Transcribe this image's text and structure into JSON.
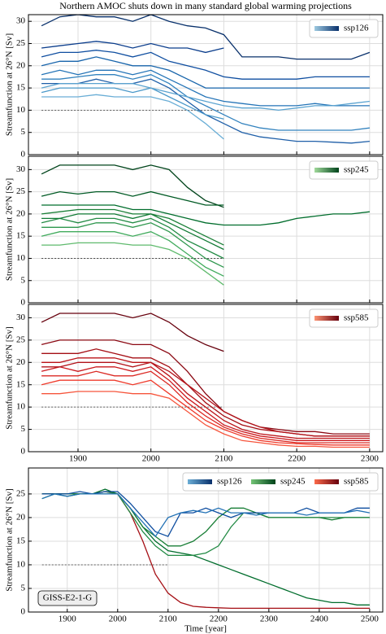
{
  "chart_data": [
    {
      "type": "line",
      "title": "Northern AMOC shuts down in many standard global warming projections",
      "ylabel": "Streamfunction at 26°N [Sv]",
      "x": [
        1850,
        1875,
        1900,
        1925,
        1950,
        1975,
        2000,
        2025,
        2050,
        2075,
        2100,
        2125,
        2150,
        2175,
        2200,
        2225,
        2250,
        2275,
        2300
      ],
      "xlim": [
        1832,
        2318
      ],
      "xticks": [
        1900,
        2000,
        2100,
        2200,
        2300
      ],
      "xticklabels": false,
      "ylim": [
        0,
        31.5
      ],
      "yticks": [
        0,
        5,
        10,
        15,
        20,
        25,
        30
      ],
      "grid": true,
      "hline": {
        "y": 10,
        "x": [
          1850,
          2100
        ]
      },
      "legend": [
        {
          "label": "ssp126",
          "colors": [
            "#9ecae1",
            "#08306b"
          ]
        }
      ],
      "legend_corner": "upper right",
      "series": [
        {
          "color": "#08306b",
          "values": [
            29,
            31,
            31.5,
            31,
            31,
            30,
            31.5,
            30,
            29,
            28.5,
            27,
            22,
            22,
            22,
            21.5,
            21.5,
            21.5,
            21.5,
            23
          ]
        },
        {
          "color": "#0b3d8c",
          "values": [
            24,
            24.5,
            25,
            25.5,
            25,
            24,
            25,
            24,
            24,
            23,
            24,
            null,
            null,
            null,
            null,
            null,
            null,
            null,
            null
          ]
        },
        {
          "color": "#0f4ea0",
          "values": [
            22,
            23,
            23,
            23.5,
            23,
            22,
            23,
            21,
            20,
            19,
            17.5,
            17,
            17,
            17,
            17,
            17.5,
            17.5,
            17.5,
            17.5
          ]
        },
        {
          "color": "#1764ab",
          "values": [
            20,
            21,
            21,
            22,
            21,
            20,
            20,
            19,
            17,
            15,
            15,
            15,
            15,
            15,
            15,
            15,
            15,
            15,
            15
          ]
        },
        {
          "color": "#2474b7",
          "values": [
            18,
            19,
            18,
            19,
            19,
            18,
            19,
            17,
            15,
            13,
            12,
            11.5,
            11,
            11,
            11,
            11.5,
            11,
            11,
            11
          ]
        },
        {
          "color": "#3282be",
          "values": [
            17,
            17,
            17.5,
            18,
            18,
            17,
            18,
            16,
            13,
            11,
            9,
            7,
            6,
            5.5,
            5.5,
            5.5,
            5.5,
            5.5,
            6
          ]
        },
        {
          "color": "#1f5fa8",
          "values": [
            16,
            16,
            16,
            17,
            16,
            16,
            17,
            15,
            12,
            9,
            7,
            5,
            4,
            3.5,
            3,
            3,
            2.8,
            2.6,
            3
          ]
        },
        {
          "color": "#4a98c9",
          "values": [
            14,
            15,
            15,
            15,
            15,
            14,
            15,
            13,
            11,
            9,
            8,
            null,
            null,
            null,
            null,
            null,
            null,
            null,
            null
          ]
        },
        {
          "color": "#6aaed6",
          "values": [
            13,
            13,
            13,
            13.5,
            13,
            13,
            13,
            12,
            10,
            7,
            3.5,
            null,
            null,
            null,
            null,
            null,
            null,
            null,
            null
          ]
        },
        {
          "color": "#5ba3d0",
          "values": [
            15,
            16,
            16,
            16,
            16,
            16,
            15,
            14,
            13,
            12,
            11,
            10.5,
            10.5,
            10,
            10.5,
            11,
            11,
            11.5,
            12
          ]
        }
      ]
    },
    {
      "type": "line",
      "ylabel": "Streamfunction at 26°N [Sv]",
      "x": [
        1850,
        1875,
        1900,
        1925,
        1950,
        1975,
        2000,
        2025,
        2050,
        2075,
        2100,
        2125,
        2150,
        2175,
        2200,
        2225,
        2250,
        2275,
        2300
      ],
      "xlim": [
        1832,
        2318
      ],
      "xticks": [
        1900,
        2000,
        2100,
        2200,
        2300
      ],
      "xticklabels": false,
      "ylim": [
        0,
        33
      ],
      "yticks": [
        0,
        5,
        10,
        15,
        20,
        25,
        30
      ],
      "grid": true,
      "hline": {
        "y": 10,
        "x": [
          1850,
          2100
        ]
      },
      "legend": [
        {
          "label": "ssp245",
          "colors": [
            "#a1d99b",
            "#00441b"
          ]
        }
      ],
      "legend_corner": "upper right",
      "series": [
        {
          "color": "#00441b",
          "values": [
            29,
            31,
            31,
            31,
            31,
            30,
            31,
            30,
            26,
            23,
            21.5,
            null,
            null,
            null,
            null,
            null,
            null,
            null,
            null
          ]
        },
        {
          "color": "#005a24",
          "values": [
            24,
            25,
            24.5,
            25,
            25,
            24,
            25,
            24,
            23,
            22,
            22,
            null,
            null,
            null,
            null,
            null,
            null,
            null,
            null
          ]
        },
        {
          "color": "#006d2c",
          "values": [
            22,
            22,
            22,
            22,
            22,
            21,
            21,
            20,
            19,
            18,
            17.5,
            17.5,
            17.5,
            18,
            19,
            19.5,
            20,
            20,
            20.5
          ]
        },
        {
          "color": "#1a7f37",
          "values": [
            20,
            20.5,
            21,
            21,
            21,
            20,
            20,
            19,
            17,
            15,
            13,
            null,
            null,
            null,
            null,
            null,
            null,
            null,
            null
          ]
        },
        {
          "color": "#238b45",
          "values": [
            18,
            19,
            18,
            19,
            19,
            18,
            19,
            17,
            14,
            12,
            10,
            null,
            null,
            null,
            null,
            null,
            null,
            null,
            null
          ]
        },
        {
          "color": "#2f974e",
          "values": [
            17,
            17,
            17,
            18,
            18,
            17,
            18,
            16,
            13,
            10,
            8,
            null,
            null,
            null,
            null,
            null,
            null,
            null,
            null
          ]
        },
        {
          "color": "#41ab5d",
          "values": [
            15,
            16,
            16,
            16,
            16,
            15,
            16,
            14,
            11,
            8,
            6,
            null,
            null,
            null,
            null,
            null,
            null,
            null,
            null
          ]
        },
        {
          "color": "#5fba6d",
          "values": [
            13,
            13,
            13.5,
            13.5,
            13.5,
            13,
            13,
            12,
            10,
            7,
            4,
            null,
            null,
            null,
            null,
            null,
            null,
            null,
            null
          ]
        },
        {
          "color": "#117a35",
          "values": [
            19,
            19,
            20,
            20,
            20,
            19,
            20,
            18,
            16,
            14,
            12,
            null,
            null,
            null,
            null,
            null,
            null,
            null,
            null
          ]
        }
      ]
    },
    {
      "type": "line",
      "ylabel": "Streamfunction at 26°N [Sv]",
      "x": [
        1850,
        1875,
        1900,
        1925,
        1950,
        1975,
        2000,
        2025,
        2050,
        2075,
        2100,
        2125,
        2150,
        2175,
        2200,
        2225,
        2250,
        2275,
        2300
      ],
      "xlim": [
        1832,
        2318
      ],
      "xticks": [
        1900,
        2000,
        2100,
        2200,
        2300
      ],
      "xticklabels": true,
      "ylim": [
        0,
        33
      ],
      "yticks": [
        0,
        5,
        10,
        15,
        20,
        25,
        30
      ],
      "grid": true,
      "hline": {
        "y": 10,
        "x": [
          1850,
          2100
        ]
      },
      "legend": [
        {
          "label": "ssp585",
          "colors": [
            "#fc9272",
            "#67000d"
          ]
        }
      ],
      "legend_corner": "upper right",
      "series": [
        {
          "color": "#67000d",
          "values": [
            29,
            31,
            31,
            31,
            31,
            30,
            31,
            29,
            26,
            24,
            22.5,
            null,
            null,
            null,
            null,
            null,
            null,
            null,
            null
          ]
        },
        {
          "color": "#8b0812",
          "values": [
            24,
            25,
            25,
            25,
            25,
            24,
            24,
            22,
            18,
            13,
            9,
            7,
            5.5,
            5,
            4.5,
            4.5,
            4,
            4,
            4
          ]
        },
        {
          "color": "#a50f15",
          "values": [
            22,
            22,
            22,
            23,
            22,
            21,
            21,
            19,
            15,
            11,
            8,
            6,
            5,
            4.5,
            4,
            3.5,
            3.5,
            3.5,
            3.5
          ]
        },
        {
          "color": "#bb1419",
          "values": [
            20,
            20,
            21,
            21,
            21,
            20,
            20,
            17,
            13,
            10,
            7,
            5,
            4,
            3.5,
            3,
            3,
            3,
            3,
            3
          ]
        },
        {
          "color": "#cb181d",
          "values": [
            18,
            19,
            18,
            19,
            19,
            18,
            19,
            16,
            12,
            9,
            6,
            4.5,
            3.5,
            3,
            2.5,
            2.5,
            2.5,
            2.5,
            2.5
          ]
        },
        {
          "color": "#db2a24",
          "values": [
            17,
            17,
            17,
            18,
            17,
            17,
            18,
            15,
            11,
            8,
            5.5,
            4,
            3,
            2.5,
            2,
            2,
            2,
            2,
            2
          ]
        },
        {
          "color": "#ef3b2c",
          "values": [
            15,
            16,
            16,
            16,
            16,
            15,
            16,
            13,
            10,
            7,
            5,
            3.5,
            2.5,
            2,
            1.8,
            1.6,
            1.5,
            1.5,
            1.5
          ]
        },
        {
          "color": "#f6553c",
          "values": [
            13,
            13,
            13.5,
            13.5,
            13.5,
            13,
            13,
            12,
            9,
            6,
            4,
            2.5,
            2,
            1.5,
            1.2,
            1.2,
            1,
            1,
            1
          ]
        },
        {
          "color": "#b3141b",
          "values": [
            19,
            19,
            20,
            20,
            20,
            19,
            20,
            18,
            15,
            12,
            9,
            7,
            5.5,
            4.5,
            4,
            3.5,
            3.5,
            3.5,
            3.5
          ]
        }
      ]
    },
    {
      "type": "line",
      "ylabel": "Streamfunction at 26°N [Sv]",
      "xlabel": "Time [year]",
      "annotation": "GISS-E2-1-G",
      "x": [
        1850,
        1875,
        1900,
        1925,
        1950,
        1975,
        2000,
        2025,
        2050,
        2075,
        2100,
        2125,
        2150,
        2175,
        2200,
        2225,
        2250,
        2275,
        2300,
        2325,
        2350,
        2375,
        2400,
        2425,
        2450,
        2475,
        2500
      ],
      "xlim": [
        1823,
        2526
      ],
      "xticks": [
        1900,
        2000,
        2100,
        2200,
        2300,
        2400,
        2500
      ],
      "xticklabels": true,
      "ylim": [
        0,
        30.5
      ],
      "yticks": [
        0,
        5,
        10,
        15,
        20,
        25
      ],
      "grid": true,
      "hline": {
        "y": 10,
        "x": [
          1850,
          2100
        ]
      },
      "legend": [
        {
          "label": "ssp126",
          "colors": [
            "#6baed6",
            "#08306b"
          ]
        },
        {
          "label": "ssp245",
          "colors": [
            "#74c476",
            "#00441b"
          ]
        },
        {
          "label": "ssp585",
          "colors": [
            "#fb6a4a",
            "#67000d"
          ]
        }
      ],
      "legend_corner": "upper right",
      "series": [
        {
          "color": "#a50f15",
          "values": [
            25,
            25,
            25,
            25,
            25,
            25.5,
            25,
            21,
            15,
            8,
            4,
            2,
            1.2,
            1,
            0.9,
            0.8,
            0.8,
            0.8,
            0.8,
            0.8,
            0.8,
            0.8,
            0.8,
            0.8,
            0.8,
            0.8,
            0.8
          ]
        },
        {
          "color": "#006d2c",
          "values": [
            25,
            25,
            25,
            25,
            25,
            26,
            25,
            22,
            18,
            15,
            13,
            12.5,
            12,
            11,
            10,
            9,
            8,
            7,
            6,
            5,
            4,
            3,
            2.5,
            2,
            2,
            1.5,
            1.5
          ]
        },
        {
          "color": "#238b45",
          "values": [
            24,
            25,
            25,
            25,
            25,
            25,
            25,
            21,
            17,
            14,
            12,
            12,
            12,
            12.5,
            14,
            18,
            21,
            21,
            20,
            20,
            20,
            20,
            20,
            20,
            20,
            20,
            20
          ]
        },
        {
          "color": "#1a7f37",
          "values": [
            25,
            25,
            24.5,
            25,
            25,
            25.5,
            25,
            22,
            18,
            16,
            14,
            14,
            15,
            17,
            20,
            22,
            22,
            21,
            20,
            20,
            20,
            20,
            20,
            19.5,
            20,
            20,
            20
          ]
        },
        {
          "color": "#0f4ea0",
          "values": [
            25,
            25,
            25,
            25.5,
            25,
            25.5,
            25.5,
            23,
            20,
            17,
            16,
            21,
            21,
            22,
            21,
            20,
            21,
            21,
            21,
            21,
            21,
            22,
            21,
            21,
            21,
            22,
            22
          ]
        },
        {
          "color": "#2171b5",
          "values": [
            24,
            25,
            24.5,
            25,
            25,
            25,
            25,
            22,
            19,
            16,
            20,
            21,
            21.5,
            21,
            22,
            21,
            21,
            20.5,
            21,
            21,
            21,
            20.5,
            21,
            21,
            21,
            21.5,
            21
          ]
        }
      ]
    }
  ]
}
